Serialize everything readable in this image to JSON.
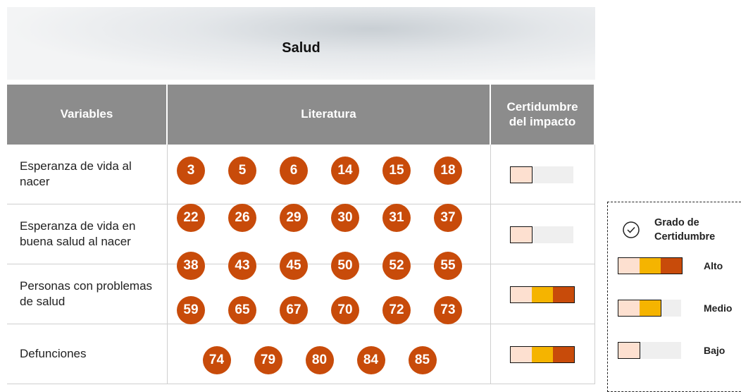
{
  "header": {
    "title": "Salud"
  },
  "table": {
    "columns": [
      "Variables",
      "Literatura",
      "Certidumbre del impacto"
    ],
    "rows": [
      {
        "variable": "Esperanza de vida al nacer",
        "certainty": 1
      },
      {
        "variable": "Esperanza de vida en buena salud al nacer",
        "certainty": 1
      },
      {
        "variable": "Personas con problemas de salud",
        "certainty": 3
      },
      {
        "variable": "Defunciones",
        "certainty": 3
      }
    ],
    "references": [
      3,
      5,
      6,
      14,
      15,
      18,
      22,
      26,
      29,
      30,
      31,
      37,
      38,
      43,
      45,
      50,
      52,
      55,
      59,
      65,
      67,
      70,
      72,
      73,
      74,
      79,
      80,
      84,
      85
    ]
  },
  "legend": {
    "title": "Grado de Certidumbre",
    "levels": [
      {
        "label": "Alto",
        "segments": 3
      },
      {
        "label": "Medio",
        "segments": 2
      },
      {
        "label": "Bajo",
        "segments": 1
      }
    ]
  }
}
